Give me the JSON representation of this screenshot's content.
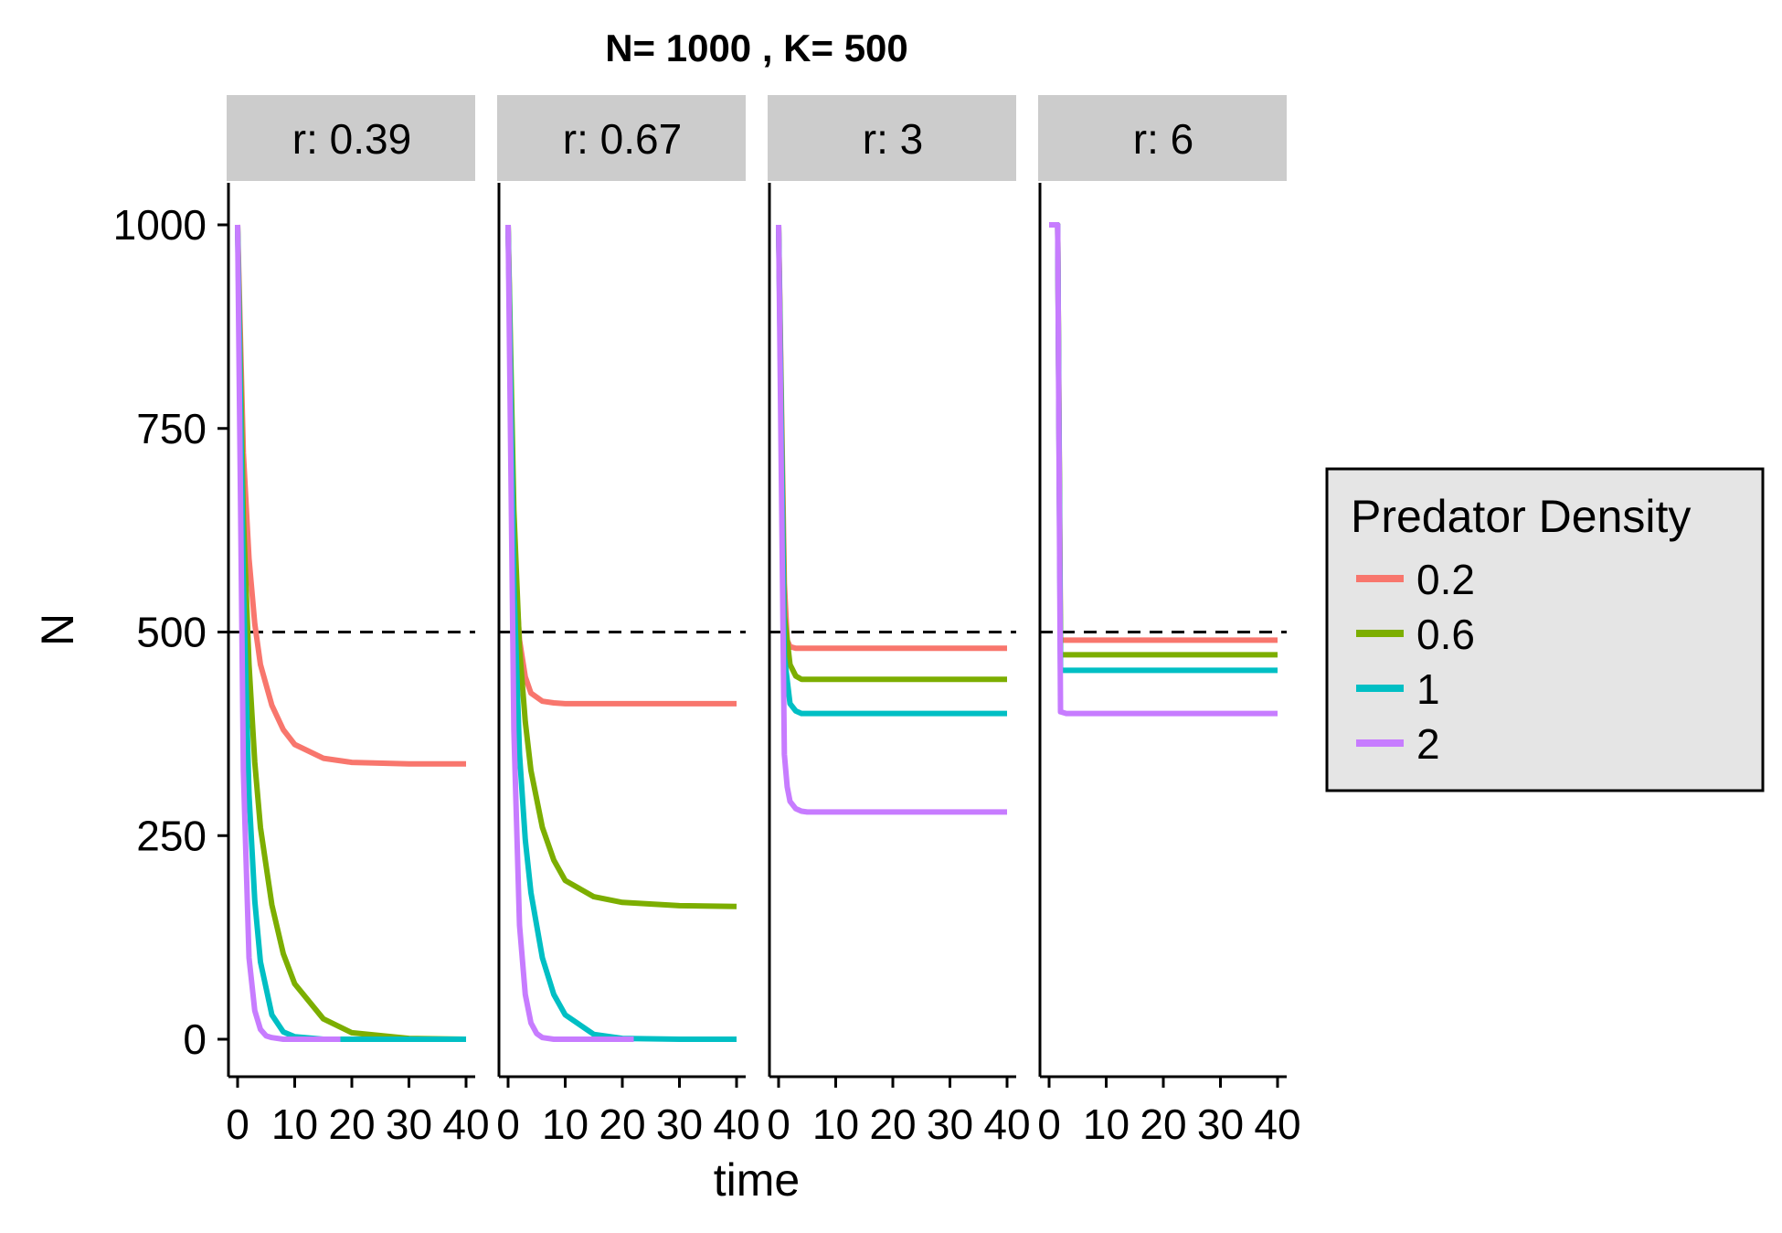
{
  "chart_data": {
    "type": "line",
    "title": "N= 1000 , K= 500",
    "xlabel": "time",
    "ylabel": "N",
    "xlim": [
      0,
      40
    ],
    "ylim": [
      0,
      1000
    ],
    "x_ticks": [
      "0",
      "10",
      "20",
      "30",
      "40"
    ],
    "y_ticks": [
      "0",
      "250",
      "500",
      "750",
      "1000"
    ],
    "reference_line": {
      "y": 500,
      "style": "dashed"
    },
    "legend": {
      "title": "Predator Density",
      "placement": "right"
    },
    "series_defs": [
      {
        "name": "0.2",
        "color": "#F8766D"
      },
      {
        "name": "0.6",
        "color": "#7CAE00"
      },
      {
        "name": "1",
        "color": "#00BFC4"
      },
      {
        "name": "2",
        "color": "#C77CFF"
      }
    ],
    "panels": [
      {
        "label": "r: 0.39",
        "series": [
          {
            "name": "0.2",
            "x": [
              0,
              1,
              2,
              3,
              4,
              6,
              8,
              10,
              15,
              20,
              30,
              40
            ],
            "values": [
              1000,
              720,
              590,
              510,
              460,
              410,
              380,
              362,
              345,
              340,
              338,
              338
            ]
          },
          {
            "name": "0.6",
            "x": [
              0,
              1,
              2,
              3,
              4,
              6,
              8,
              10,
              15,
              20,
              30,
              40
            ],
            "values": [
              1000,
              640,
              460,
              340,
              260,
              165,
              105,
              68,
              25,
              8,
              1,
              0
            ]
          },
          {
            "name": "1",
            "x": [
              0,
              1,
              2,
              3,
              4,
              6,
              8,
              10,
              15,
              40
            ],
            "values": [
              1000,
              560,
              300,
              170,
              95,
              30,
              9,
              3,
              0,
              0
            ]
          },
          {
            "name": "2",
            "x": [
              0,
              1,
              2,
              3,
              4,
              5,
              6,
              8,
              10,
              18
            ],
            "values": [
              1000,
              330,
              100,
              35,
              12,
              4,
              2,
              0,
              0,
              0
            ]
          }
        ]
      },
      {
        "label": "r: 0.67",
        "series": [
          {
            "name": "0.2",
            "x": [
              0,
              1,
              2,
              3,
              4,
              6,
              8,
              10,
              15,
              20,
              30,
              40
            ],
            "values": [
              1000,
              600,
              490,
              445,
              425,
              415,
              413,
              412,
              412,
              412,
              412,
              412
            ]
          },
          {
            "name": "0.6",
            "x": [
              0,
              1,
              2,
              3,
              4,
              6,
              8,
              10,
              15,
              20,
              30,
              40
            ],
            "values": [
              1000,
              650,
              480,
              390,
              330,
              260,
              220,
              195,
              175,
              168,
              164,
              163
            ]
          },
          {
            "name": "1",
            "x": [
              0,
              1,
              2,
              3,
              4,
              6,
              8,
              10,
              15,
              20,
              30,
              40
            ],
            "values": [
              1000,
              560,
              350,
              245,
              180,
              100,
              55,
              30,
              6,
              1,
              0,
              0
            ]
          },
          {
            "name": "2",
            "x": [
              0,
              1,
              2,
              3,
              4,
              5,
              6,
              8,
              10,
              22
            ],
            "values": [
              1000,
              380,
              140,
              55,
              20,
              7,
              2,
              0,
              0,
              0
            ]
          }
        ]
      },
      {
        "label": "r: 3",
        "series": [
          {
            "name": "0.2",
            "x": [
              0,
              1,
              1.5,
              2,
              3,
              40
            ],
            "values": [
              1000,
              560,
              490,
              482,
              480,
              480
            ]
          },
          {
            "name": "0.6",
            "x": [
              0,
              1,
              2,
              3,
              4,
              40
            ],
            "values": [
              1000,
              520,
              460,
              446,
              442,
              442
            ]
          },
          {
            "name": "1",
            "x": [
              0,
              1,
              2,
              3,
              4,
              40
            ],
            "values": [
              1000,
              470,
              412,
              403,
              400,
              400
            ]
          },
          {
            "name": "2",
            "x": [
              0,
              1,
              1.5,
              2,
              3,
              4,
              5,
              40
            ],
            "values": [
              1000,
              350,
              310,
              292,
              283,
              280,
              279,
              279
            ]
          }
        ]
      },
      {
        "label": "r: 6",
        "series": [
          {
            "name": "0.2",
            "x": [
              0,
              1.5,
              2,
              40
            ],
            "values": [
              1000,
              1000,
              490,
              490
            ]
          },
          {
            "name": "0.6",
            "x": [
              0,
              1.5,
              2,
              40
            ],
            "values": [
              1000,
              1000,
              472,
              472
            ]
          },
          {
            "name": "1",
            "x": [
              0,
              1.5,
              2,
              40
            ],
            "values": [
              1000,
              1000,
              453,
              453
            ]
          },
          {
            "name": "2",
            "x": [
              0,
              1.5,
              2,
              3,
              40
            ],
            "values": [
              1000,
              1000,
              402,
              400,
              400
            ]
          }
        ]
      }
    ]
  }
}
